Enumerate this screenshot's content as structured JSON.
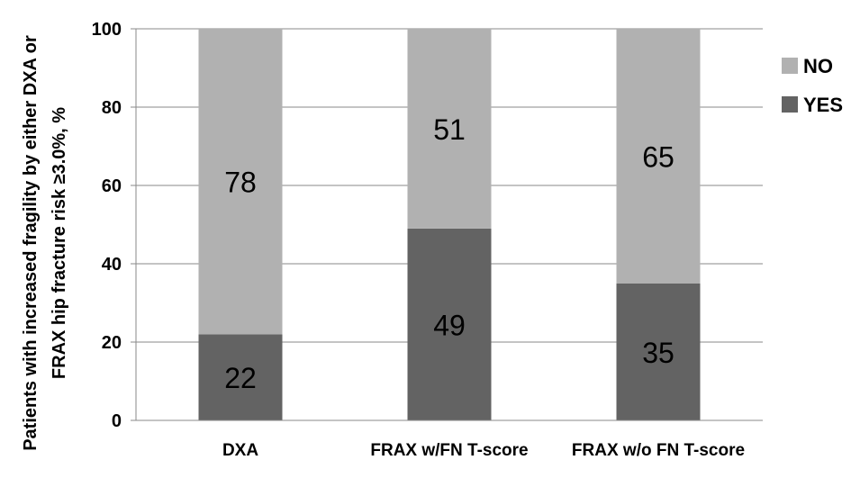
{
  "chart_data": {
    "type": "bar",
    "stacked": true,
    "categories": [
      "DXA",
      "FRAX w/FN T-score",
      "FRAX w/o FN T-score"
    ],
    "series": [
      {
        "name": "YES",
        "values": [
          22,
          49,
          35
        ],
        "color": "#636363"
      },
      {
        "name": "NO",
        "values": [
          78,
          51,
          65
        ],
        "color": "#b1b1b1"
      }
    ],
    "title": "",
    "xlabel": "",
    "ylabel": "Patients with increased fragility by either DXA or FRAX hip fracture risk ≥3.0%, %",
    "ylabel_lines": [
      "Patients with increased fragility by either DXA or",
      "FRAX hip fracture risk ≥3.0%, %"
    ],
    "ylim": [
      0,
      100
    ],
    "yticks": [
      "0",
      "20",
      "40",
      "60",
      "80",
      "100"
    ],
    "grid": true,
    "legend": {
      "position": "right",
      "entries": [
        "NO",
        "YES"
      ]
    },
    "data_labels": true
  }
}
